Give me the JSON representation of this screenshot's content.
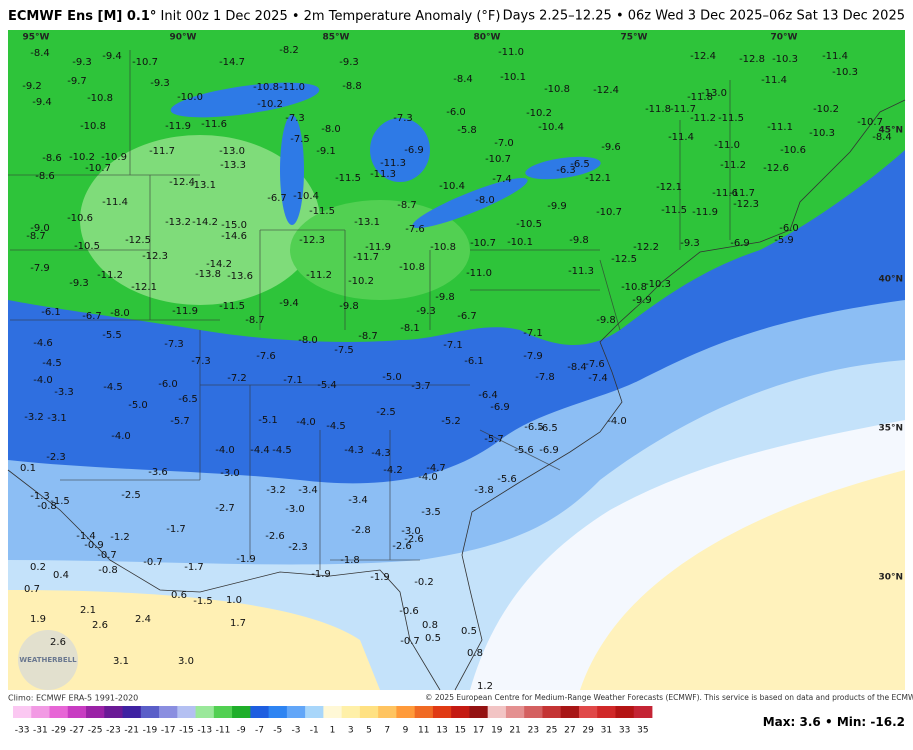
{
  "header": {
    "title_bold": "ECMWF Ens [M] 0.1°",
    "title_rest": "Init 00z 1 Dec 2025 • 2m Temperature Anomaly (°F)",
    "valid": "Days 2.25–12.25 • 06z Wed 3 Dec 2025–06z Sat 13 Dec 2025"
  },
  "map": {
    "lon_labels": [
      "95°W",
      "90°W",
      "85°W",
      "80°W",
      "75°W",
      "70°W"
    ],
    "lat_labels": [
      "45°N",
      "40°N",
      "35°N",
      "30°N"
    ],
    "logo": "WEATHERBELL"
  },
  "anomalies": [
    -8.4,
    -9.3,
    -9.4,
    -10.7,
    -14.7,
    -8.2,
    -9.3,
    {
      "value": -11.0,
      "label": "-11.0"
    },
    -12.4,
    -12.8,
    -10.3,
    -11.4,
    -10.3,
    -9.2,
    -9.7,
    -9.3,
    -10.8,
    {
      "value": -11.0,
      "label": "-11.0"
    },
    -8.8,
    -8.4,
    -10.1,
    -10.8,
    -12.4,
    {
      "value": -13.0,
      "label": "-13.0"
    },
    -11.4,
    -9.4,
    -10.8,
    {
      "value": -10.0,
      "label": "-10.0"
    },
    -10.2,
    -11.8,
    -11.7,
    -11.8,
    -10.2,
    -10.8,
    -11.9,
    -11.6,
    -7.3,
    {
      "value": -8.0,
      "label": "-8.0"
    },
    -7.3,
    {
      "value": -6.0,
      "label": "-6.0"
    },
    -5.8,
    -10.2,
    -10.4,
    -11.2,
    -11.5,
    -11.1,
    -10.3,
    -10.7,
    -8.4,
    -11.7,
    {
      "value": -13.0,
      "label": "-13.0"
    },
    -7.5,
    -9.1,
    -6.9,
    {
      "value": -7.0,
      "label": "-7.0"
    },
    -9.6,
    -11.4,
    {
      "value": -11.0,
      "label": "-11.0"
    },
    -10.6,
    -8.6,
    -10.2,
    -10.9,
    -10.7,
    -13.3,
    -11.3,
    -11.3,
    -10.7,
    -6.5,
    -6.3,
    -11.2,
    -12.6,
    -8.6,
    -12.4,
    -13.1,
    -11.5,
    -10.4,
    -7.4,
    -12.1,
    -12.1,
    -11.6,
    -11.7,
    -12.3,
    -6.7,
    -10.4,
    -11.4,
    -8.7,
    {
      "value": -8.0,
      "label": "-8.0"
    },
    -9.9,
    -10.7,
    -11.5,
    -11.9,
    {
      "value": -6.0,
      "label": "-6.0"
    },
    -11.5,
    -10.6,
    -13.2,
    -14.2,
    {
      "value": -15.0,
      "label": "-15.0"
    },
    -13.1,
    -7.6,
    -10.5,
    -9.3,
    -6.9,
    -5.9,
    {
      "value": -9.0,
      "label": "-9.0"
    },
    -8.7,
    -12.5,
    -14.6,
    -12.3,
    -11.9,
    -10.8,
    -10.7,
    -10.1,
    -9.8,
    -12.2,
    -10.5,
    -12.3,
    -11.7,
    -10.8,
    -12.5,
    -11.3,
    -7.9,
    -11.2,
    -14.2,
    -13.8,
    -13.6,
    -11.2,
    -10.2,
    {
      "value": -11.0,
      "label": "-11.0"
    },
    -9.3,
    -12.1,
    -10.8,
    -10.3,
    -9.9,
    -6.1,
    -6.7,
    {
      "value": -8.0,
      "label": "-8.0"
    },
    -11.9,
    -11.5,
    -9.4,
    -8.7,
    -9.8,
    -9.8,
    -9.3,
    -6.7,
    -9.8,
    -5.5,
    -8.1,
    -7.1,
    -8.7,
    -4.6,
    -7.3,
    {
      "value": -8.0,
      "label": "-8.0"
    },
    -7.5,
    -7.1,
    -7.9,
    -7.6,
    -4.5,
    -7.3,
    -6.1,
    -8.4,
    -7.6,
    -7.4,
    -7.8,
    {
      "value": -4.0,
      "label": "-4.0"
    },
    -7.2,
    -7.1,
    -5.4,
    {
      "value": -5.0,
      "label": "-5.0"
    },
    -3.7,
    {
      "value": -6.0,
      "label": "-6.0"
    },
    -3.3,
    -4.5,
    -6.5,
    -6.4,
    -6.9,
    {
      "value": -5.0,
      "label": "-5.0"
    },
    -2.5,
    -3.2,
    -3.1,
    -5.7,
    -5.1,
    {
      "value": -4.0,
      "label": "-4.0"
    },
    -4.5,
    -5.2,
    -6.5,
    -6.5,
    {
      "value": -4.0,
      "label": "-4.0"
    },
    {
      "value": -4.0,
      "label": "-4.0"
    },
    -5.7,
    {
      "value": -4.0,
      "label": "-4.0"
    },
    -4.4,
    -4.5,
    -4.3,
    -4.3,
    -5.6,
    -6.9,
    -2.3,
    0.1,
    -3.6,
    {
      "value": -3.0,
      "label": "-3.0"
    },
    -4.2,
    -4.7,
    {
      "value": -4.0,
      "label": "-4.0"
    },
    -5.6,
    -3.2,
    -3.4,
    -2.5,
    -3.8,
    -1.3,
    -1.5,
    -0.8,
    -3.4,
    -2.7,
    {
      "value": -3.0,
      "label": "-3.0"
    },
    -3.5,
    -1.7,
    -1.4,
    -1.2,
    -0.9,
    -2.8,
    -2.6,
    {
      "value": -3.0,
      "label": "-3.0"
    },
    -2.6,
    -2.6,
    -2.3,
    -0.7,
    -0.7,
    -1.9,
    -1.8,
    -0.8,
    -1.7,
    0.2,
    0.4,
    -1.9,
    -1.9,
    -0.2,
    0.7,
    0.6,
    -1.5,
    {
      "value": 1.0,
      "label": "1.0"
    },
    2.1,
    -0.6,
    0.8,
    1.9,
    2.6,
    2.4,
    1.7,
    -0.7,
    0.5,
    0.5,
    2.6,
    0.8,
    3.1,
    {
      "value": 3.0,
      "label": "3.0"
    },
    1.2
  ],
  "footer": {
    "climo": "Climo: ECMWF ERA-5 1991-2020",
    "copyright": "© 2025 European Centre for Medium-Range Weather Forecasts (ECMWF). This service is based on data and products of the ECMWF.",
    "max_label": "Max:",
    "max": 3.6,
    "separator": "•",
    "min_label": "Min:",
    "min": -16.2
  },
  "colorbar": {
    "ticks": [
      -33,
      -31,
      -29,
      -27,
      -25,
      -23,
      -21,
      -19,
      -17,
      -15,
      -13,
      -11,
      -9,
      -7,
      -5,
      -3,
      -1,
      1,
      3,
      5,
      7,
      9,
      11,
      13,
      15,
      17,
      19,
      21,
      23,
      25,
      27,
      29,
      31,
      33,
      35
    ],
    "colors": [
      "#fbc8f2",
      "#f29ae4",
      "#e766d6",
      "#c83cc2",
      "#9a22a6",
      "#6a1a96",
      "#3f22a2",
      "#5a5ec8",
      "#8a8ee0",
      "#b4c0f2",
      "#9ae89a",
      "#52d052",
      "#1fae2a",
      "#1e5ee0",
      "#2e84f2",
      "#62a6f8",
      "#a8d6fa",
      "#fff8d6",
      "#fff0a8",
      "#ffe182",
      "#ffc460",
      "#ff9a3a",
      "#f06a24",
      "#e03a14",
      "#c41a12",
      "#941212",
      "#f2c4c4",
      "#e49090",
      "#d46060",
      "#c43434",
      "#a81616",
      "#e04848",
      "#d02828",
      "#b41414",
      "#c42434"
    ]
  }
}
